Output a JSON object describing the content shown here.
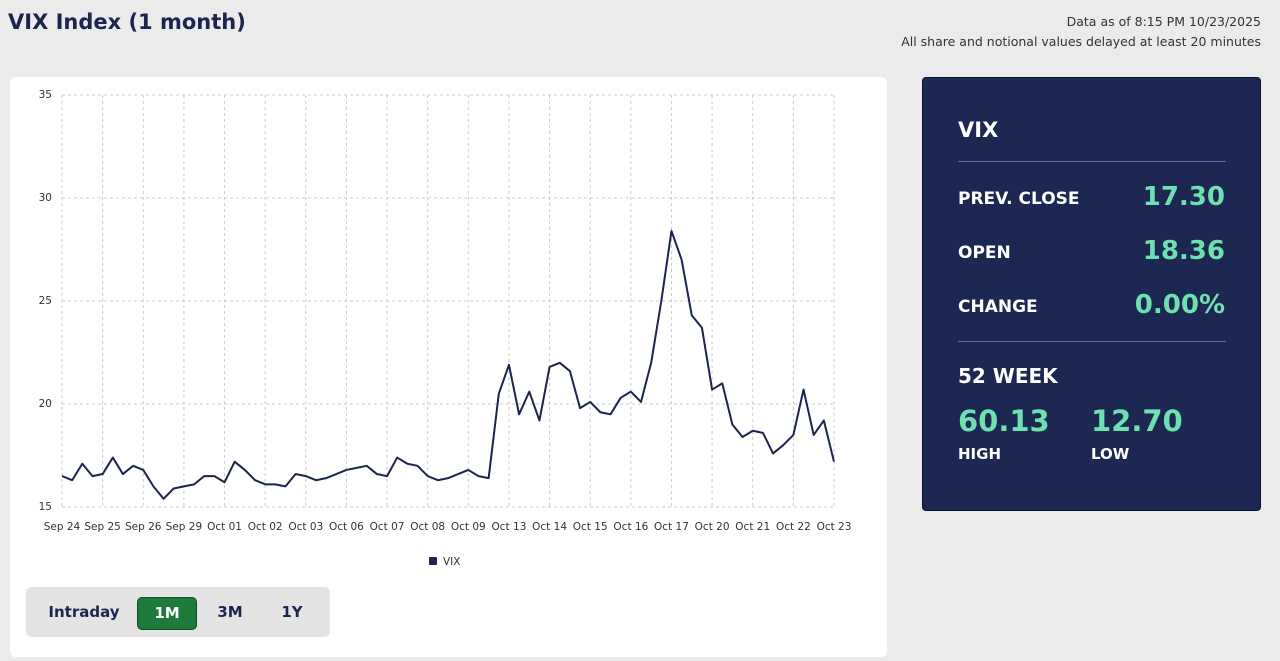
{
  "header": {
    "title": "VIX Index (1 month)",
    "data_as_of": "Data as of 8:15 PM 10/23/2025",
    "delay_note": "All share and notional values delayed at least 20 minutes"
  },
  "chart_data": {
    "type": "line",
    "categories": [
      "Sep 24",
      null,
      null,
      null,
      "Sep 25",
      null,
      null,
      null,
      "Sep 26",
      null,
      null,
      null,
      "Sep 29",
      null,
      null,
      null,
      "Oct 01",
      null,
      null,
      null,
      "Oct 02",
      null,
      null,
      null,
      "Oct 03",
      null,
      null,
      null,
      "Oct 06",
      null,
      null,
      null,
      "Oct 07",
      null,
      null,
      null,
      "Oct 08",
      null,
      null,
      null,
      "Oct 09",
      null,
      null,
      null,
      "Oct 13",
      null,
      null,
      null,
      "Oct 14",
      null,
      null,
      null,
      "Oct 15",
      null,
      null,
      null,
      "Oct 16",
      null,
      null,
      null,
      "Oct 17",
      null,
      null,
      null,
      "Oct 20",
      null,
      null,
      null,
      "Oct 21",
      null,
      null,
      null,
      "Oct 22",
      null,
      null,
      null,
      "Oct 23"
    ],
    "series": [
      {
        "name": "VIX",
        "color": "#1b2550",
        "values": [
          16.5,
          16.3,
          17.1,
          16.5,
          16.6,
          17.4,
          16.6,
          17.0,
          16.8,
          16.0,
          15.4,
          15.9,
          16.0,
          16.1,
          16.5,
          16.5,
          16.2,
          17.2,
          16.8,
          16.3,
          16.1,
          16.1,
          16.0,
          16.6,
          16.5,
          16.3,
          16.4,
          16.6,
          16.8,
          16.9,
          17.0,
          16.6,
          16.5,
          17.4,
          17.1,
          17.0,
          16.5,
          16.3,
          16.4,
          16.6,
          16.8,
          16.5,
          16.4,
          20.5,
          21.9,
          19.5,
          20.6,
          19.2,
          21.8,
          22.0,
          21.6,
          19.8,
          20.1,
          19.6,
          19.5,
          20.3,
          20.6,
          20.1,
          22.0,
          25.0,
          28.4,
          27.0,
          24.3,
          23.7,
          20.7,
          21.0,
          19.0,
          18.4,
          18.7,
          18.6,
          17.6,
          18.0,
          18.5,
          20.7,
          18.5,
          19.2,
          17.2
        ]
      }
    ],
    "ylim": [
      15,
      35
    ],
    "yticks": [
      15,
      20,
      25,
      30,
      35
    ],
    "grid": true
  },
  "range_buttons": [
    "Intraday",
    "1M",
    "3M",
    "1Y"
  ],
  "panel": {
    "title": "VIX",
    "rows": [
      {
        "label": "PREV. CLOSE",
        "value": "17.30"
      },
      {
        "label": "OPEN",
        "value": "18.36"
      },
      {
        "label": "CHANGE",
        "value": "0.00%"
      }
    ],
    "week52": {
      "title": "52 WEEK",
      "high": "60.13",
      "high_label": "HIGH",
      "low": "12.70",
      "low_label": "LOW"
    }
  }
}
